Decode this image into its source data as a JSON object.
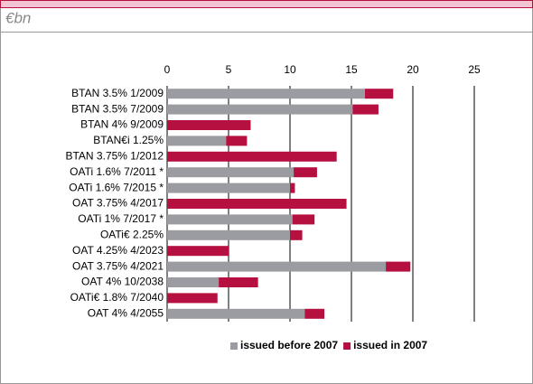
{
  "chart_data": {
    "type": "bar",
    "orientation": "horizontal",
    "stacked": true,
    "subtitle": "€bn",
    "categories": [
      "BTAN 3.5% 1/2009",
      "BTAN 3.5% 7/2009",
      "BTAN 4% 9/2009",
      "BTAN€i 1.25%",
      "BTAN 3.75% 1/2012",
      "OATi 1.6% 7/2011 *",
      "OATi 1.6% 7/2015 *",
      "OAT 3.75% 4/2017",
      "OATi 1% 7/2017 *",
      "OATi€ 2.25%",
      "OAT 4.25% 4/2023",
      "OAT 3.75% 4/2021",
      "OAT 4% 10/2038",
      "OATi€ 1.8% 7/2040",
      "OAT 4% 4/2055"
    ],
    "series": [
      {
        "name": "issued before 2007",
        "color": "#9b9ca1",
        "values": [
          16.1,
          15.1,
          0,
          4.8,
          0,
          10.3,
          10,
          0,
          10.2,
          10,
          0,
          17.8,
          4.2,
          0,
          11.2
        ]
      },
      {
        "name": "issued in 2007",
        "color": "#b5103f",
        "values": [
          2.3,
          2.1,
          6.8,
          1.7,
          13.8,
          1.9,
          0.4,
          14.6,
          1.8,
          1,
          5,
          2,
          3.2,
          4.1,
          1.6
        ]
      }
    ],
    "xlim": [
      0,
      25
    ],
    "xticks": [
      0,
      5,
      10,
      15,
      20,
      25
    ],
    "grid": true,
    "legend": "bottom"
  }
}
